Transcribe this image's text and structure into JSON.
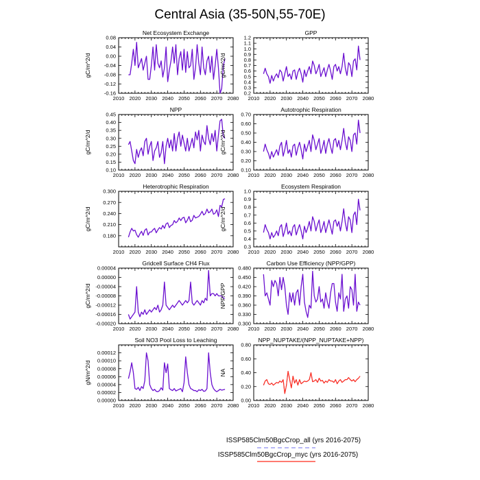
{
  "figure": {
    "title": "Central Asia (35-50N,55-70E)",
    "legend": [
      {
        "label": "ISSP585Clm50BgcCrop_all (yrs 2016-2075)",
        "color": "#8a8af0",
        "style": "dashed"
      },
      {
        "label": "ISSP585Clm50BgcCrop_myc (yrs 2016-2075)",
        "color": "#ff2a1a",
        "style": "solid"
      }
    ],
    "colors": {
      "overlap": "#6a0fd0",
      "all": "#8a8af0",
      "myc": "#ff2a1a"
    }
  },
  "chart_data": [
    {
      "type": "line",
      "title": "Net Ecosystem Exchange",
      "ylabel": "gC/m^2/d",
      "xlim": [
        2010,
        2080
      ],
      "ylim": [
        -0.16,
        0.08
      ],
      "xticks": [
        "2010",
        "2020",
        "2030",
        "2040",
        "2050",
        "2060",
        "2070",
        "2080"
      ],
      "yticks": [
        "-0.16",
        "-0.12",
        "-0.08",
        "-0.04",
        "0.00",
        "0.04",
        "0.08"
      ],
      "x_start": 2016,
      "series": [
        {
          "values": [
            -0.08,
            -0.08,
            -0.03,
            0.03,
            -0.04,
            0.06,
            -0.05,
            -0.03,
            -0.01,
            -0.06,
            -0.03,
            0.0,
            -0.1,
            -0.1,
            -0.04,
            0.04,
            -0.06,
            0.05,
            -0.03,
            -0.05,
            -0.02,
            -0.09,
            -0.05,
            0.04,
            -0.11,
            -0.06,
            -0.02,
            0.04,
            -0.03,
            0.05,
            -0.08,
            -0.01,
            0.02,
            -0.06,
            0.03,
            -0.07,
            0.02,
            -0.05,
            -0.04,
            0.03,
            -0.1,
            -0.05,
            0.05,
            -0.03,
            -0.08,
            0.04,
            -0.05,
            -0.08,
            -0.02,
            0.0,
            -0.07,
            0.0,
            -0.1,
            -0.04,
            0.03,
            -0.05,
            -0.16,
            -0.14,
            -0.04,
            -0.01
          ]
        }
      ]
    },
    {
      "type": "line",
      "title": "GPP",
      "ylabel": "gC/m^2/d",
      "xlim": [
        2010,
        2080
      ],
      "ylim": [
        0.2,
        1.2
      ],
      "xticks": [
        "2010",
        "2020",
        "2030",
        "2040",
        "2050",
        "2060",
        "2070",
        "2080"
      ],
      "yticks": [
        "0.2",
        "0.3",
        "0.4",
        "0.5",
        "0.6",
        "0.7",
        "0.8",
        "0.9",
        "1.0",
        "1.1",
        "1.2"
      ],
      "x_start": 2016,
      "series": [
        {
          "values": [
            0.55,
            0.65,
            0.55,
            0.5,
            0.38,
            0.52,
            0.42,
            0.5,
            0.55,
            0.48,
            0.62,
            0.58,
            0.42,
            0.55,
            0.68,
            0.5,
            0.55,
            0.45,
            0.6,
            0.62,
            0.45,
            0.58,
            0.65,
            0.55,
            0.4,
            0.62,
            0.5,
            0.6,
            0.68,
            0.55,
            0.78,
            0.7,
            0.55,
            0.62,
            0.72,
            0.5,
            0.58,
            0.66,
            0.5,
            0.62,
            0.72,
            0.6,
            0.45,
            0.68,
            0.72,
            0.6,
            0.68,
            0.55,
            0.68,
            0.92,
            0.65,
            0.52,
            0.75,
            0.7,
            0.5,
            0.78,
            0.82,
            0.62,
            1.05,
            0.8
          ]
        }
      ]
    },
    {
      "type": "line",
      "title": "NPP",
      "ylabel": "gC/m^2/d",
      "xlim": [
        2010,
        2080
      ],
      "ylim": [
        0.1,
        0.45
      ],
      "xticks": [
        "2010",
        "2020",
        "2030",
        "2040",
        "2050",
        "2060",
        "2070",
        "2080"
      ],
      "yticks": [
        "0.10",
        "0.15",
        "0.20",
        "0.25",
        "0.30",
        "0.35",
        "0.40",
        "0.45"
      ],
      "x_start": 2016,
      "series": [
        {
          "values": [
            0.26,
            0.28,
            0.22,
            0.16,
            0.14,
            0.23,
            0.18,
            0.22,
            0.24,
            0.19,
            0.28,
            0.3,
            0.2,
            0.25,
            0.28,
            0.16,
            0.22,
            0.24,
            0.28,
            0.18,
            0.21,
            0.28,
            0.14,
            0.25,
            0.3,
            0.24,
            0.29,
            0.22,
            0.33,
            0.22,
            0.3,
            0.34,
            0.25,
            0.32,
            0.27,
            0.22,
            0.3,
            0.22,
            0.26,
            0.3,
            0.24,
            0.34,
            0.29,
            0.35,
            0.22,
            0.32,
            0.28,
            0.26,
            0.38,
            0.3,
            0.26,
            0.33,
            0.28,
            0.35,
            0.22,
            0.32,
            0.41,
            0.42,
            0.31,
            0.3
          ]
        }
      ]
    },
    {
      "type": "line",
      "title": "Autotrophic Respiration",
      "ylabel": "gC/m^2/d",
      "xlim": [
        2010,
        2080
      ],
      "ylim": [
        0.1,
        0.7
      ],
      "xticks": [
        "2010",
        "2020",
        "2030",
        "2040",
        "2050",
        "2060",
        "2070",
        "2080"
      ],
      "yticks": [
        "0.10",
        "0.20",
        "0.30",
        "0.40",
        "0.50",
        "0.60",
        "0.70"
      ],
      "x_start": 2016,
      "series": [
        {
          "values": [
            0.3,
            0.38,
            0.32,
            0.28,
            0.22,
            0.3,
            0.24,
            0.28,
            0.32,
            0.26,
            0.36,
            0.4,
            0.25,
            0.32,
            0.42,
            0.28,
            0.32,
            0.24,
            0.36,
            0.38,
            0.26,
            0.34,
            0.4,
            0.32,
            0.22,
            0.38,
            0.3,
            0.36,
            0.42,
            0.3,
            0.48,
            0.42,
            0.32,
            0.38,
            0.44,
            0.28,
            0.34,
            0.42,
            0.28,
            0.38,
            0.44,
            0.35,
            0.28,
            0.42,
            0.44,
            0.35,
            0.42,
            0.32,
            0.42,
            0.55,
            0.4,
            0.32,
            0.46,
            0.42,
            0.3,
            0.48,
            0.5,
            0.38,
            0.64,
            0.5
          ]
        }
      ]
    },
    {
      "type": "line",
      "title": "Heterotrophic Respiration",
      "ylabel": "gC/m^2/d",
      "xlim": [
        2010,
        2080
      ],
      "ylim": [
        0.15,
        0.3
      ],
      "xticks": [
        "2010",
        "2020",
        "2030",
        "2040",
        "2050",
        "2060",
        "2070",
        "2080"
      ],
      "yticks": [
        "0.180",
        "0.210",
        "0.240",
        "0.270",
        "0.300"
      ],
      "x_start": 2016,
      "series": [
        {
          "values": [
            0.176,
            0.19,
            0.2,
            0.193,
            0.195,
            0.183,
            0.176,
            0.185,
            0.192,
            0.181,
            0.195,
            0.199,
            0.182,
            0.19,
            0.19,
            0.196,
            0.2,
            0.188,
            0.196,
            0.202,
            0.198,
            0.208,
            0.2,
            0.212,
            0.215,
            0.202,
            0.208,
            0.21,
            0.221,
            0.215,
            0.219,
            0.228,
            0.221,
            0.228,
            0.23,
            0.215,
            0.222,
            0.232,
            0.218,
            0.222,
            0.235,
            0.228,
            0.23,
            0.232,
            0.238,
            0.246,
            0.236,
            0.24,
            0.252,
            0.242,
            0.245,
            0.252,
            0.238,
            0.241,
            0.25,
            0.232,
            0.262,
            0.258,
            0.278,
            0.28
          ]
        }
      ]
    },
    {
      "type": "line",
      "title": "Ecosystem Respiration",
      "ylabel": "gC/m^2/d",
      "xlim": [
        2010,
        2080
      ],
      "ylim": [
        0.3,
        1.0
      ],
      "xticks": [
        "2010",
        "2020",
        "2030",
        "2040",
        "2050",
        "2060",
        "2070",
        "2080"
      ],
      "yticks": [
        "0.3",
        "0.4",
        "0.5",
        "0.6",
        "0.7",
        "0.8",
        "0.9",
        "1.0"
      ],
      "x_start": 2016,
      "series": [
        {
          "values": [
            0.48,
            0.58,
            0.52,
            0.48,
            0.4,
            0.48,
            0.42,
            0.45,
            0.5,
            0.44,
            0.55,
            0.58,
            0.43,
            0.5,
            0.6,
            0.46,
            0.5,
            0.44,
            0.55,
            0.58,
            0.45,
            0.52,
            0.58,
            0.5,
            0.4,
            0.56,
            0.48,
            0.54,
            0.62,
            0.5,
            0.68,
            0.62,
            0.5,
            0.58,
            0.64,
            0.48,
            0.54,
            0.62,
            0.48,
            0.56,
            0.64,
            0.55,
            0.46,
            0.62,
            0.64,
            0.56,
            0.62,
            0.5,
            0.62,
            0.78,
            0.6,
            0.5,
            0.68,
            0.64,
            0.48,
            0.7,
            0.74,
            0.58,
            0.9,
            0.76
          ]
        }
      ]
    },
    {
      "type": "line",
      "title": "Gridcell Surface CH4 Flux",
      "ylabel": "gC/m^2/d",
      "xlim": [
        2010,
        2080
      ],
      "ylim": [
        -0.0002,
        4e-05
      ],
      "xticks": [
        "2010",
        "2020",
        "2030",
        "2040",
        "2050",
        "2060",
        "2070",
        "2080"
      ],
      "yticks": [
        "-0.00020",
        "-0.00016",
        "-0.00012",
        "-0.00008",
        "-0.00004",
        "0.00000",
        "0.00004"
      ],
      "x_start": 2016,
      "series": [
        {
          "values": [
            -0.00016,
            -0.00018,
            -0.00017,
            -0.00016,
            -0.00015,
            -4e-05,
            -0.00015,
            -0.00017,
            -0.00015,
            -0.00016,
            -0.00014,
            -0.00016,
            -0.00015,
            -0.00014,
            -0.00015,
            -0.00014,
            -0.00013,
            -0.00014,
            -0.00012,
            -0.00015,
            -0.00014,
            -0.00012,
            -2e-05,
            -0.00012,
            -0.00013,
            -0.00014,
            -0.00013,
            -0.00012,
            -0.00013,
            -0.00012,
            -0.00011,
            -0.0001,
            -0.00011,
            -0.00012,
            -0.00011,
            -0.0001,
            -0.00011,
            -0.0001,
            -2e-05,
            -0.00011,
            -0.00012,
            -0.00011,
            -0.0001,
            -0.00011,
            -0.00012,
            -0.0001,
            -0.00011,
            -9e-05,
            -0.0001,
            3e-05,
            -8e-05,
            -7e-05,
            -7e-05,
            -8e-05,
            -7e-05,
            -8e-05,
            -8e-05,
            -8e-05,
            -9e-05,
            -9e-05
          ]
        }
      ]
    },
    {
      "type": "line",
      "title": "Carbon Use Efficiency (NPP/GPP)",
      "ylabel": "NPP/GPP",
      "xlim": [
        2010,
        2080
      ],
      "ylim": [
        0.3,
        0.48
      ],
      "xticks": [
        "2010",
        "2020",
        "2030",
        "2040",
        "2050",
        "2060",
        "2070",
        "2080"
      ],
      "yticks": [
        "0.300",
        "0.330",
        "0.360",
        "0.390",
        "0.420",
        "0.450",
        "0.480"
      ],
      "x_start": 2016,
      "series": [
        {
          "values": [
            0.46,
            0.39,
            0.4,
            0.38,
            0.36,
            0.44,
            0.42,
            0.44,
            0.43,
            0.39,
            0.45,
            0.41,
            0.45,
            0.42,
            0.36,
            0.33,
            0.4,
            0.37,
            0.4,
            0.36,
            0.4,
            0.41,
            0.36,
            0.42,
            0.46,
            0.37,
            0.34,
            0.32,
            0.36,
            0.35,
            0.47,
            0.39,
            0.37,
            0.38,
            0.42,
            0.37,
            0.38,
            0.35,
            0.4,
            0.37,
            0.35,
            0.4,
            0.43,
            0.43,
            0.37,
            0.34,
            0.4,
            0.38,
            0.46,
            0.34,
            0.38,
            0.39,
            0.35,
            0.42,
            0.41,
            0.36,
            0.46,
            0.34,
            0.37,
            0.36
          ]
        }
      ]
    },
    {
      "type": "line",
      "title": "Soil NO3 Pool Loss to Leaching",
      "ylabel": "gN/m^2/d",
      "xlim": [
        2010,
        2080
      ],
      "ylim": [
        0,
        0.00014
      ],
      "xticks": [
        "2010",
        "2020",
        "2030",
        "2040",
        "2050",
        "2060",
        "2070",
        "2080"
      ],
      "yticks": [
        "0.00000",
        "0.00002",
        "0.00004",
        "0.00006",
        "0.00008",
        "0.00010",
        "0.00012"
      ],
      "x_start": 2016,
      "series": [
        {
          "values": [
            5.5e-05,
            7.2e-05,
            9.5e-05,
            7e-05,
            3e-05,
            2.8e-05,
            3.3e-05,
            2.5e-05,
            3.5e-05,
            3e-05,
            5e-05,
            0.00012,
            0.0001,
            4e-05,
            3e-05,
            2.5e-05,
            2.8e-05,
            2.3e-05,
            2.2e-05,
            2.5e-05,
            3.2e-05,
            2.6e-05,
            9.5e-05,
            7e-05,
            9.2e-05,
            3e-05,
            2.7e-05,
            2.5e-05,
            3e-05,
            2.4e-05,
            2.6e-05,
            2.8e-05,
            3e-05,
            2.2e-05,
            4.5e-05,
            0.00011,
            7e-05,
            4e-05,
            3e-05,
            2.8e-05,
            2.5e-05,
            2.5e-05,
            2.2e-05,
            2.7e-05,
            2.5e-05,
            2.8e-05,
            2.3e-05,
            2.4e-05,
            3e-05,
            0.00012,
            7e-05,
            4e-05,
            3e-05,
            2.5e-05,
            2.2e-05,
            2.5e-05,
            2.8e-05,
            2.6e-05,
            2.7e-05,
            2.8e-05
          ]
        }
      ]
    },
    {
      "type": "line",
      "title": "NPP_NUPTAKE/(NPP_NUPTAKE+NPP)",
      "ylabel": "NA",
      "xlim": [
        2010,
        2080
      ],
      "ylim": [
        0,
        0.8
      ],
      "xticks": [
        "2010",
        "2020",
        "2030",
        "2040",
        "2050",
        "2060",
        "2070",
        "2080"
      ],
      "yticks": [
        "0.00",
        "0.20",
        "0.40",
        "0.60",
        "0.80"
      ],
      "x_start": 2016,
      "series": [
        {
          "name": "ISSP585Clm50BgcCrop_all",
          "values": [
            0.22,
            0.28,
            0.3,
            0.24,
            0.23,
            0.25,
            0.22,
            0.24,
            0.26,
            0.25,
            0.28,
            0.26,
            0.3,
            0.1,
            0.22,
            0.42,
            0.3,
            0.18,
            0.35,
            0.25,
            0.3,
            0.22,
            0.3,
            0.24,
            0.26,
            0.28,
            0.27,
            0.28,
            0.3,
            0.4,
            0.27,
            0.28,
            0.3,
            0.26,
            0.32,
            0.28,
            0.29,
            0.25,
            0.28,
            0.26,
            0.3,
            0.28,
            0.28,
            0.26,
            0.3,
            0.24,
            0.28,
            0.3,
            0.26,
            0.28,
            0.3,
            0.3,
            0.33,
            0.3,
            0.28,
            0.3,
            0.27,
            0.3,
            0.32,
            0.35
          ]
        },
        {
          "name": "ISSP585Clm50BgcCrop_myc",
          "values": [
            0.22,
            0.28,
            0.3,
            0.24,
            0.23,
            0.25,
            0.22,
            0.24,
            0.26,
            0.25,
            0.28,
            0.26,
            0.3,
            0.1,
            0.22,
            0.42,
            0.3,
            0.18,
            0.35,
            0.25,
            0.3,
            0.22,
            0.3,
            0.24,
            0.26,
            0.28,
            0.27,
            0.28,
            0.3,
            0.4,
            0.27,
            0.28,
            0.3,
            0.26,
            0.32,
            0.28,
            0.29,
            0.25,
            0.28,
            0.26,
            0.3,
            0.28,
            0.28,
            0.26,
            0.3,
            0.24,
            0.28,
            0.3,
            0.26,
            0.28,
            0.3,
            0.3,
            0.33,
            0.3,
            0.28,
            0.3,
            0.27,
            0.3,
            0.32,
            0.35
          ]
        }
      ]
    }
  ]
}
